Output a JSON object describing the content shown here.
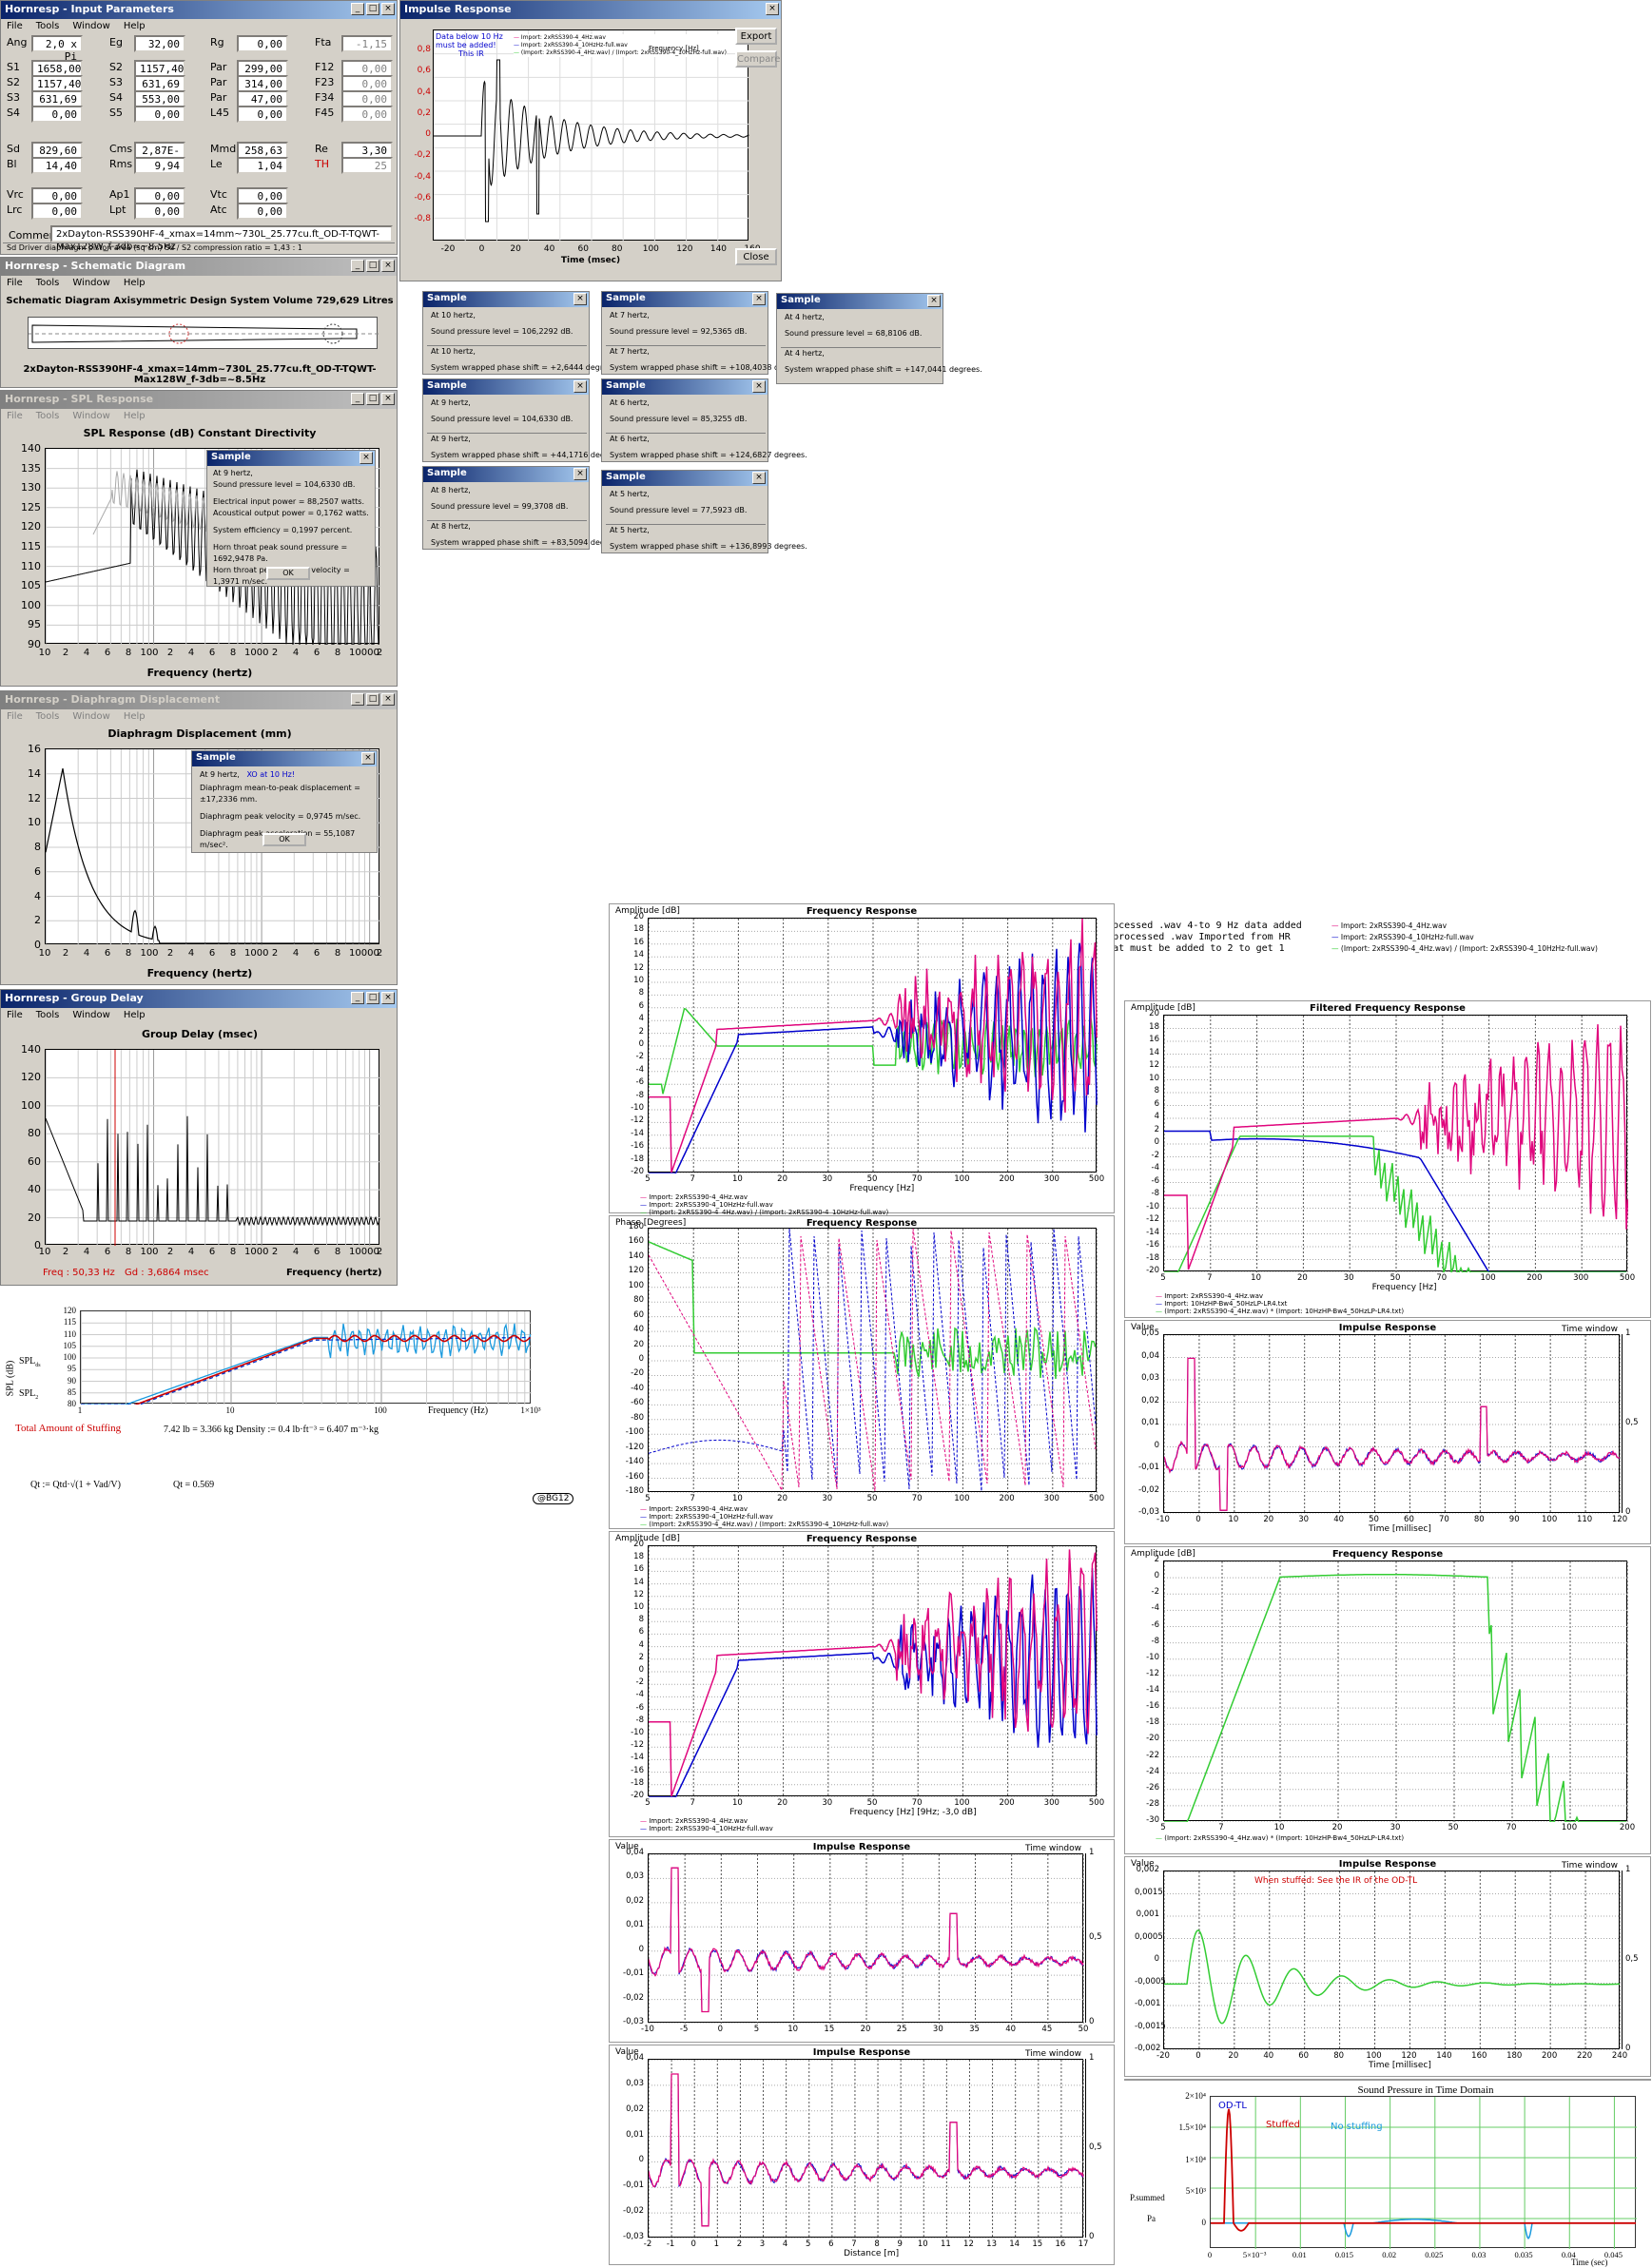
{
  "input_params": {
    "title": "Hornresp - Input Parameters",
    "menu": [
      "File",
      "Tools",
      "Window",
      "Help"
    ],
    "rows": [
      [
        [
          "Ang",
          "2,0 x Pi"
        ],
        [
          "Eg",
          "32,00"
        ],
        [
          "Rg",
          "0,00"
        ],
        [
          "Fta",
          "-1,15"
        ]
      ],
      [
        [
          "S1",
          "1658,00"
        ],
        [
          "S2",
          "1157,40"
        ],
        [
          "Par",
          "299,00"
        ],
        [
          "F12",
          "0,00"
        ]
      ],
      [
        [
          "S2",
          "1157,40"
        ],
        [
          "S3",
          "631,69"
        ],
        [
          "Par",
          "314,00"
        ],
        [
          "F23",
          "0,00"
        ]
      ],
      [
        [
          "S3",
          "631,69"
        ],
        [
          "S4",
          "553,00"
        ],
        [
          "Par",
          "47,00"
        ],
        [
          "F34",
          "0,00"
        ]
      ],
      [
        [
          "S4",
          "0,00"
        ],
        [
          "S5",
          "0,00"
        ],
        [
          "L45",
          "0,00"
        ],
        [
          "F45",
          "0,00"
        ]
      ],
      [
        [
          "Sd",
          "829,60"
        ],
        [
          "Cms",
          "2,87E-04"
        ],
        [
          "Mmd",
          "258,63"
        ],
        [
          "Re",
          "3,30"
        ]
      ],
      [
        [
          "Bl",
          "14,40"
        ],
        [
          "Rms",
          "9,94"
        ],
        [
          "Le",
          "1,04"
        ],
        [
          "TH",
          "25"
        ]
      ],
      [
        [
          "Vrc",
          "0,00"
        ],
        [
          "Ap1",
          "0,00"
        ],
        [
          "Vtc",
          "0,00"
        ]
      ],
      [
        [
          "Lrc",
          "0,00"
        ],
        [
          "Lpt",
          "0,00"
        ],
        [
          "Atc",
          "0,00"
        ]
      ]
    ],
    "comment_label": "Comment",
    "comment": "2xDayton-RSS390HF-4_xmax=14mm~730L_25.77cu.ft_OD-T-TQWT-Max128W_f-3db=~8.5Hz",
    "status": "Sd   Driver diaphragm piston area  (sq cm)    Sd / S2 compression ratio = 1,43 : 1"
  },
  "schematic": {
    "title": "Hornresp - Schematic Diagram",
    "menu": [
      "File",
      "Tools",
      "Window",
      "Help"
    ],
    "header": "Schematic Diagram    Axisymmetric Design    System Volume 729,629 Litres",
    "caption": "2xDayton-RSS390HF-4_xmax=14mm~730L_25.77cu.ft_OD-T-TQWT-Max128W_f-3db=~8.5Hz"
  },
  "spl": {
    "title": "Hornresp - SPL Response",
    "menu": [
      "File",
      "Tools",
      "Window",
      "Help"
    ],
    "header": "SPL Response  (dB)    Constant Directivity",
    "yticks": [
      "140",
      "135",
      "130",
      "125",
      "120",
      "115",
      "110",
      "105",
      "100",
      "95",
      "90"
    ],
    "xticks": [
      "10",
      "2",
      "4",
      "6",
      "8",
      "100",
      "2",
      "4",
      "6",
      "8",
      "1000",
      "2",
      "4",
      "6",
      "8",
      "10000",
      "2"
    ],
    "xlabel": "Frequency  (hertz)",
    "sample": {
      "title": "Sample",
      "lines": [
        "At 9 hertz,",
        "Sound pressure level = 104,6330 dB.",
        "Electrical input power = 88,2507 watts.",
        "Acoustical output power = 0,1762 watts.",
        "System efficiency = 0,1997 percent.",
        "Horn throat peak sound pressure = 1692,9478 Pa.",
        "Horn throat peak particle velocity = 1,3971 m/sec."
      ],
      "ok": "OK"
    }
  },
  "disp": {
    "title": "Hornresp - Diaphragm Displacement",
    "menu": [
      "File",
      "Tools",
      "Window",
      "Help"
    ],
    "header": "Diaphragm Displacement (mm)",
    "yticks": [
      "16",
      "14",
      "12",
      "10",
      "8",
      "6",
      "4",
      "2",
      "0"
    ],
    "xlabel": "Frequency  (hertz)",
    "sample": {
      "title": "Sample",
      "l1": "At 9 hertz,",
      "note": "XO at 10 Hz!",
      "lines": [
        "Diaphragm mean-to-peak displacement = ±17,2336 mm.",
        "Diaphragm peak velocity = 0,9745 m/sec.",
        "Diaphragm peak acceleration = 55,1087 m/sec²."
      ],
      "ok": "OK"
    }
  },
  "gd": {
    "title": "Hornresp - Group Delay",
    "menu": [
      "File",
      "Tools",
      "Window",
      "Help"
    ],
    "header": "Group Delay (msec)",
    "yticks": [
      "140",
      "120",
      "100",
      "80",
      "60",
      "40",
      "20",
      "0"
    ],
    "xlabel": "Frequency  (hertz)",
    "freq": "Freq : 50,33 Hz",
    "gdv": "Gd : 3,6864 msec"
  },
  "impulse": {
    "title": "Impulse Response",
    "note": [
      "Data below 10 Hz",
      "must be added!",
      "This IR"
    ],
    "legend": [
      "Import: 2xRSS390-4_4Hz.wav",
      "Import: 2xRSS390-4_10HzHz-full.wav",
      "(Import: 2xRSS390-4_4Hz.wav) / (Import: 2xRSS390-4_10HzHz-full.wav)"
    ],
    "fq": "Frequency [Hz]",
    "yticks": [
      "0,8",
      "0,6",
      "0,4",
      "0,2",
      "0",
      "-0,2",
      "-0,4",
      "-0,6",
      "-0,8"
    ],
    "xticks": [
      "-20",
      "0",
      "20",
      "40",
      "60",
      "80",
      "100",
      "120",
      "140",
      "160"
    ],
    "xlabel": "Time (msec)",
    "export": "Export",
    "compare": "Compare",
    "close": "Close"
  },
  "samples": [
    {
      "t": "Sample",
      "a": "At 10 hertz,",
      "b": "Sound pressure level = 106,2292 dB.",
      "c": "At 10 hertz,",
      "d": "System wrapped phase shift = +2,6444 degrees."
    },
    {
      "t": "Sample",
      "a": "At 7 hertz,",
      "b": "Sound pressure level = 92,5365 dB.",
      "c": "At 7 hertz,",
      "d": "System wrapped phase shift = +108,4038 degrees."
    },
    {
      "t": "Sample",
      "a": "At 4 hertz,",
      "b": "Sound pressure level = 68,8106 dB.",
      "c": "At 4 hertz,",
      "d": "System wrapped phase shift = +147,0441 degrees."
    },
    {
      "t": "Sample",
      "a": "At 9 hertz,",
      "b": "Sound pressure level = 104,6330 dB.",
      "c": "At 9 hertz,",
      "d": "System wrapped phase shift = +44,1716 degrees."
    },
    {
      "t": "Sample",
      "a": "At 6 hertz,",
      "b": "Sound pressure level = 85,3255 dB.",
      "c": "At 6 hertz,",
      "d": "System wrapped phase shift = +124,6827 degrees."
    },
    {
      "t": "Sample",
      "a": "At 8 hertz,",
      "b": "Sound pressure level = 99,3708 dB.",
      "c": "At 8 hertz,",
      "d": "System wrapped phase shift = +83,5094 degrees."
    },
    {
      "t": "Sample",
      "a": "At 5 hertz,",
      "b": "Sound pressure level = 77,5923 dB.",
      "c": "At 5 hertz,",
      "d": "System wrapped phase shift = +136,8993 degrees."
    }
  ],
  "notes": [
    "1.Processed .wav 4-to 9 Hz data added",
    "2.Unprocessed .wav Imported from HR",
    "3.What must be added to 2 to get 1"
  ],
  "fr1": {
    "title": "Frequency Response",
    "ylab": "Amplitude [dB]",
    "xlab": "Frequency [Hz]",
    "leg": [
      "Import: 2xRSS390-4_4Hz.wav",
      "Import: 2xRSS390-4_10HzHz-full.wav",
      "(Import: 2xRSS390-4_4Hz.wav) / (Import: 2xRSS390-4_10HzHz-full.wav)"
    ],
    "yt": [
      "20",
      "18",
      "16",
      "14",
      "12",
      "10",
      "8",
      "6",
      "4",
      "2",
      "0",
      "-2",
      "-4",
      "-6",
      "-8",
      "-10",
      "-12",
      "-14",
      "-16",
      "-18",
      "-20"
    ],
    "xt": [
      "5",
      "7",
      "10",
      "20",
      "30",
      "50",
      "70",
      "100",
      "200",
      "300",
      "500"
    ]
  },
  "ph": {
    "title": "Frequency Response",
    "ylab": "Phase [Degrees]",
    "yt": [
      "180",
      "160",
      "140",
      "120",
      "100",
      "80",
      "60",
      "40",
      "20",
      "0",
      "-20",
      "-40",
      "-60",
      "-80",
      "-100",
      "-120",
      "-140",
      "-160",
      "-180"
    ],
    "xt": [
      "5",
      "7",
      "10",
      "20",
      "30",
      "50",
      "70",
      "100",
      "200",
      "300",
      "500"
    ],
    "leg": [
      "Import: 2xRSS390-4_4Hz.wav",
      "Import: 2xRSS390-4_10HzHz-full.wav",
      "(Import: 2xRSS390-4_4Hz.wav) / (Import: 2xRSS390-4_10HzHz-full.wav)"
    ]
  },
  "fr2": {
    "title": "Frequency Response",
    "ylab": "Amplitude [dB]",
    "xlab": "Frequency [Hz]",
    "extra": "[9Hz; -3,0 dB]",
    "leg": [
      "Import: 2xRSS390-4_4Hz.wav",
      "Import: 2xRSS390-4_10HzHz-full.wav"
    ],
    "yt": [
      "20",
      "18",
      "16",
      "14",
      "12",
      "10",
      "8",
      "6",
      "4",
      "2",
      "0",
      "-2",
      "-4",
      "-6",
      "-8",
      "-10",
      "-12",
      "-14",
      "-16",
      "-18",
      "-20"
    ],
    "xt": [
      "5",
      "7",
      "10",
      "20",
      "30",
      "50",
      "70",
      "100",
      "200",
      "300",
      "500"
    ]
  },
  "ir1": {
    "title": "Impulse Response",
    "ylab": "Value",
    "tw": "Time window",
    "yt": [
      "0,04",
      "0,03",
      "0,02",
      "0,01",
      "0",
      "-0,01",
      "-0,02",
      "-0,03"
    ],
    "xt": [
      "-10",
      "-5",
      "0",
      "5",
      "10",
      "15",
      "20",
      "25",
      "30",
      "35",
      "40",
      "45",
      "50"
    ],
    "r": [
      "1",
      "0,5",
      "0"
    ]
  },
  "ir2": {
    "title": "Impulse Response",
    "ylab": "Value",
    "tw": "Time window",
    "yt": [
      "0,04",
      "0,03",
      "0,02",
      "0,01",
      "0",
      "-0,01",
      "-0,02",
      "-0,03"
    ],
    "xt": [
      "-2",
      "-1",
      "0",
      "1",
      "2",
      "3",
      "4",
      "5",
      "6",
      "7",
      "8",
      "9",
      "10",
      "11",
      "12",
      "13",
      "14",
      "15",
      "16",
      "17"
    ],
    "xlab": "Distance [m]",
    "r": [
      "1",
      "0,5",
      "0"
    ]
  },
  "ffr": {
    "title": "Filtered    Frequency Response",
    "ylab": "Amplitude [dB]",
    "xlab": "Frequency [Hz]",
    "yt": [
      "20",
      "18",
      "16",
      "14",
      "12",
      "10",
      "8",
      "6",
      "4",
      "2",
      "0",
      "-2",
      "-4",
      "-6",
      "-8",
      "-10",
      "-12",
      "-14",
      "-16",
      "-18",
      "-20"
    ],
    "xt": [
      "5",
      "7",
      "10",
      "20",
      "30",
      "50",
      "70",
      "100",
      "200",
      "300",
      "500"
    ],
    "leg": [
      "Import: 2xRSS390-4_4Hz.wav",
      "Import: 10HzHP-Bw4_50HzLP-LR4.txt",
      "(Import: 2xRSS390-4_4Hz.wav) * (Import: 10HzHP-Bw4_50HzLP-LR4.txt)"
    ]
  },
  "ir3": {
    "title": "Impulse Response",
    "ylab": "Value",
    "tw": "Time window",
    "yt": [
      "0,05",
      "0,04",
      "0,03",
      "0,02",
      "0,01",
      "0",
      "-0,01",
      "-0,02",
      "-0,03"
    ],
    "xt": [
      "-10",
      "0",
      "10",
      "20",
      "30",
      "40",
      "50",
      "60",
      "70",
      "80",
      "90",
      "100",
      "110",
      "120"
    ],
    "xlab": "Time [millisec]",
    "r": [
      "1",
      "0,5",
      "0"
    ]
  },
  "fr3": {
    "title": "Frequency Response",
    "ylab": "Amplitude [dB]",
    "yt": [
      "2",
      "0",
      "-2",
      "-4",
      "-6",
      "-8",
      "-10",
      "-12",
      "-14",
      "-16",
      "-18",
      "-20",
      "-22",
      "-24",
      "-26",
      "-28",
      "-30"
    ],
    "xt": [
      "5",
      "7",
      "10",
      "20",
      "30",
      "50",
      "70",
      "100",
      "200"
    ],
    "leg": "(Import: 2xRSS390-4_4Hz.wav) * (Import: 10HzHP-Bw4_50HzLP-LR4.txt)"
  },
  "ir4": {
    "title": "Impulse Response",
    "ylab": "Value",
    "tw": "Time window",
    "note": "When stuffed: See the IR of the OD-TL",
    "yt": [
      "0,002",
      "0,0015",
      "0,001",
      "0,0005",
      "0",
      "-0,0005",
      "-0,001",
      "-0,0015",
      "-0,002"
    ],
    "xt": [
      "-20",
      "0",
      "20",
      "40",
      "60",
      "80",
      "100",
      "120",
      "140",
      "160",
      "180",
      "200",
      "220",
      "240"
    ],
    "xlab": "Time [millisec]",
    "r": [
      "1",
      "0,5",
      "0"
    ]
  },
  "mc": {
    "yl": "SPL (dB)",
    "s1": "SPL",
    "s2": "SPL",
    "yt": [
      "120",
      "115",
      "110",
      "105",
      "100",
      "95",
      "90",
      "85",
      "80"
    ],
    "xt": [
      "1",
      "10",
      "100",
      "1×10³"
    ],
    "xlab": "Frequency (Hz)",
    "stuff_lbl": "Total Amount of Stuffing",
    "stuff": "7.42 lb = 3.366 kg    Density := 0.4 lb·ft⁻³ = 6.407 m⁻³·kg",
    "qt_formula": "Qt := Qtd·√(1 + Vad/V)",
    "qt": "Qt = 0.569",
    "sig": "@BG12"
  },
  "td": {
    "title": "Sound Pressure in Time Domain",
    "odtl": "OD-TL",
    "stuffed": "Stuffed",
    "nost": "No stuffing",
    "yt": [
      "2×10⁴",
      "1.5×10⁴",
      "1×10⁴",
      "5×10³",
      "0"
    ],
    "xt": [
      "0",
      "5×10⁻³",
      "0.01",
      "0.015",
      "0.02",
      "0.025",
      "0.03",
      "0.035",
      "0.04",
      "0.045"
    ],
    "xlab": "Time (sec)",
    "pl": "P.summed",
    "pa": "Pa"
  }
}
